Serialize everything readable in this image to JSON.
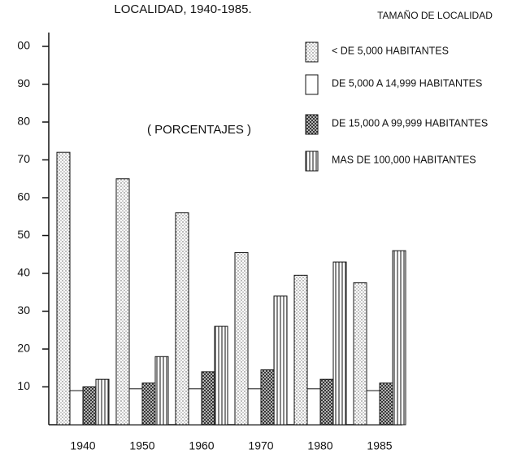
{
  "chart_data": {
    "type": "bar",
    "title": "LOCALIDAD, 1940-1985.",
    "legend_title": "TAMAÑO DE LOCALIDAD",
    "annotation": "( PORCENTAJES )",
    "categories": [
      "1940",
      "1950",
      "1960",
      "1970",
      "1980",
      "1985"
    ],
    "series": [
      {
        "name": "< DE 5,000 HABITANTES",
        "color": "#555555",
        "pattern": "dots",
        "values": [
          72,
          65,
          56,
          45.5,
          39.5,
          37.5
        ]
      },
      {
        "name": "DE 5,000 A 14,999 HABITANTES",
        "color": "#ffffff",
        "pattern": "none",
        "values": [
          9,
          9.5,
          9.5,
          9.5,
          9.5,
          9
        ]
      },
      {
        "name": "DE 15,000 A 99,999 HABITANTES",
        "color": "#333333",
        "pattern": "cross",
        "values": [
          10,
          11,
          14,
          14.5,
          12,
          11
        ]
      },
      {
        "name": "MAS DE 100,000 HABITANTES",
        "color": "#444444",
        "pattern": "stripes",
        "values": [
          12,
          18,
          26,
          34,
          43,
          46
        ]
      }
    ],
    "ylim": [
      0,
      100
    ],
    "yticks": [
      10,
      20,
      30,
      40,
      50,
      60,
      70,
      80,
      90,
      {
        "value": 100,
        "label": "00"
      }
    ]
  }
}
